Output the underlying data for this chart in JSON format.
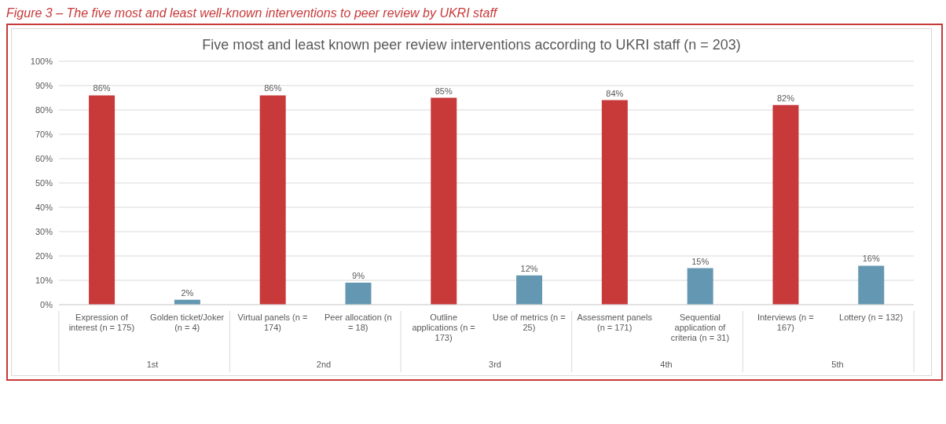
{
  "chart_data": {
    "type": "bar",
    "title": "Five most and least known peer review interventions according to UKRI staff (n = 203)",
    "annotations": [
      "Figure 3 – The five most and least well-known interventions to peer review by UKRI staff",
      "1st",
      "2nd",
      "3rd",
      "4th",
      "5th"
    ],
    "categories": [
      "Expression of interest (n = 175)",
      "Golden ticket/Joker (n = 4)",
      "Virtual panels (n = 174)",
      "Peer allocation (n = 18)",
      "Outline applications (n = 173)",
      "Use of metrics (n = 25)",
      "Assessment panels (n = 171)",
      "Sequential application of criteria (n = 31)",
      "Interviews (n = 167)",
      "Lottery (n = 132)"
    ],
    "values": [
      86,
      2,
      86,
      9,
      85,
      12,
      84,
      15,
      82,
      16
    ],
    "value_labels": [
      "86%",
      "2%",
      "86%",
      "9%",
      "85%",
      "12%",
      "84%",
      "15%",
      "82%",
      "16%"
    ],
    "colors": [
      "#c8393a",
      "#6497b1",
      "#c8393a",
      "#6497b1",
      "#c8393a",
      "#6497b1",
      "#c8393a",
      "#6497b1",
      "#c8393a",
      "#6497b1"
    ],
    "ylim": [
      0,
      100
    ],
    "yticks": [
      {
        "value": 0,
        "label": "0%"
      },
      {
        "value": 10,
        "label": "10%"
      },
      {
        "value": 20,
        "label": "20%"
      },
      {
        "value": 30,
        "label": "30%"
      },
      {
        "value": 40,
        "label": "40%"
      },
      {
        "value": 50,
        "label": "50%"
      },
      {
        "value": 60,
        "label": "60%"
      },
      {
        "value": 70,
        "label": "70%"
      },
      {
        "value": 80,
        "label": "80%"
      },
      {
        "value": 90,
        "label": "90%"
      },
      {
        "value": 100,
        "label": "100%"
      }
    ],
    "grid": "y",
    "legend": false
  }
}
